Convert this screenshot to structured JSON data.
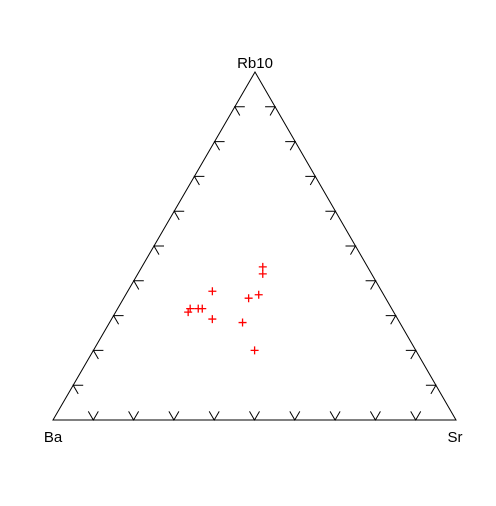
{
  "chart_data": {
    "type": "scatter",
    "subtype": "ternary",
    "vertices": {
      "top": "Rb10",
      "left": "Ba",
      "right": "Sr"
    },
    "tick_step": 0.1,
    "point_marker": "+",
    "point_color": "#ff0000",
    "axis_color": "#000000",
    "grid": false,
    "points": [
      {
        "Ba": 0.51,
        "Rb10": 0.31,
        "Sr": 0.18
      },
      {
        "Ba": 0.5,
        "Rb10": 0.32,
        "Sr": 0.18
      },
      {
        "Ba": 0.48,
        "Rb10": 0.32,
        "Sr": 0.2
      },
      {
        "Ba": 0.47,
        "Rb10": 0.32,
        "Sr": 0.21
      },
      {
        "Ba": 0.46,
        "Rb10": 0.29,
        "Sr": 0.25
      },
      {
        "Ba": 0.42,
        "Rb10": 0.37,
        "Sr": 0.21
      },
      {
        "Ba": 0.4,
        "Rb10": 0.2,
        "Sr": 0.4
      },
      {
        "Ba": 0.39,
        "Rb10": 0.28,
        "Sr": 0.33
      },
      {
        "Ba": 0.34,
        "Rb10": 0.35,
        "Sr": 0.31
      },
      {
        "Ba": 0.31,
        "Rb10": 0.36,
        "Sr": 0.33
      },
      {
        "Ba": 0.27,
        "Rb10": 0.42,
        "Sr": 0.31
      },
      {
        "Ba": 0.26,
        "Rb10": 0.44,
        "Sr": 0.3
      }
    ]
  }
}
